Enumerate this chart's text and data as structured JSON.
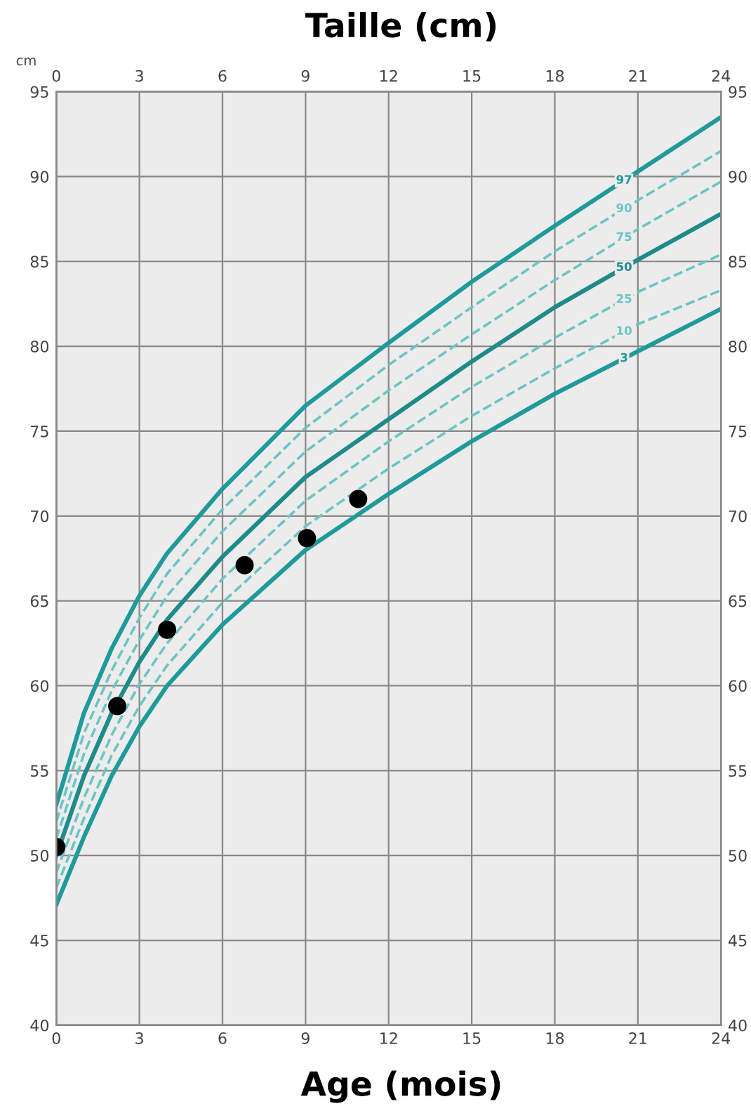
{
  "chart_data": {
    "type": "line",
    "title": "Taille (cm)",
    "xlabel": "Age (mois)",
    "ylabel": "cm",
    "x": [
      0,
      1,
      2,
      3,
      4,
      6,
      9,
      12,
      15,
      18,
      21,
      24
    ],
    "series": [
      {
        "name": "97",
        "color": "#1f9a9a",
        "line_style": "solid",
        "values": [
          53.0,
          58.4,
          62.2,
          65.3,
          67.8,
          71.6,
          76.5,
          80.2,
          83.8,
          87.1,
          90.3,
          93.5
        ]
      },
      {
        "name": "90",
        "color": "#6cc4c4",
        "line_style": "dashed",
        "values": [
          52.0,
          57.2,
          60.9,
          64.0,
          66.6,
          70.4,
          75.2,
          78.9,
          82.3,
          85.6,
          88.6,
          91.5
        ]
      },
      {
        "name": "75",
        "color": "#6cc4c4",
        "line_style": "dashed",
        "values": [
          51.0,
          56.0,
          59.7,
          62.7,
          65.3,
          69.1,
          73.8,
          77.4,
          80.7,
          83.9,
          86.9,
          89.7
        ]
      },
      {
        "name": "50",
        "color": "#1f8a8a",
        "line_style": "solid",
        "values": [
          50.0,
          54.7,
          58.4,
          61.4,
          63.9,
          67.6,
          72.3,
          75.7,
          79.1,
          82.3,
          85.1,
          87.8
        ]
      },
      {
        "name": "25",
        "color": "#6cc4c4",
        "line_style": "dashed",
        "values": [
          49.0,
          53.4,
          57.1,
          60.1,
          62.5,
          66.3,
          70.9,
          74.4,
          77.6,
          80.5,
          83.2,
          85.4
        ]
      },
      {
        "name": "10",
        "color": "#6cc4c4",
        "line_style": "dashed",
        "values": [
          48.1,
          52.2,
          55.9,
          58.8,
          61.2,
          64.9,
          69.4,
          72.8,
          75.9,
          78.7,
          81.3,
          83.3
        ]
      },
      {
        "name": "3",
        "color": "#1f9a9a",
        "line_style": "solid",
        "values": [
          47.1,
          51.1,
          54.7,
          57.6,
          60.0,
          63.6,
          68.0,
          71.3,
          74.4,
          77.2,
          79.7,
          82.2
        ]
      },
      {
        "type": "scatter",
        "color": "#000000",
        "marker": "circle",
        "x": [
          0,
          2.2,
          4.0,
          6.8,
          9.05,
          10.9
        ],
        "values": [
          50.5,
          58.8,
          63.3,
          67.1,
          68.7,
          71.0
        ]
      }
    ],
    "xlim": [
      0,
      24
    ],
    "xticks": [
      0,
      3,
      6,
      9,
      12,
      15,
      18,
      21,
      24
    ],
    "x2lim": [
      0,
      24
    ],
    "x2ticks": [
      0,
      3,
      6,
      9,
      12,
      15,
      18,
      21,
      24
    ],
    "ylim": [
      40,
      95
    ],
    "yticks": [
      40,
      45,
      50,
      55,
      60,
      65,
      70,
      75,
      80,
      85,
      90,
      95
    ],
    "y2lim": [
      40,
      95
    ],
    "y2ticks": [
      40,
      45,
      50,
      55,
      60,
      65,
      70,
      75,
      80,
      85,
      90,
      95
    ],
    "grid": true,
    "legend": false,
    "marker": "none"
  }
}
